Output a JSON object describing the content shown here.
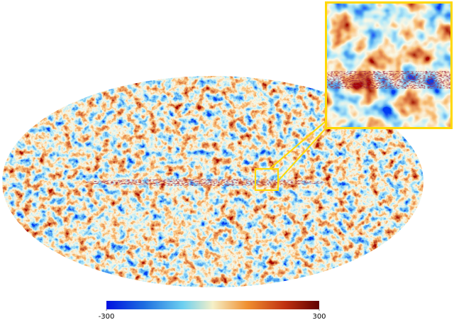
{
  "colorbar": {
    "lim": [
      -300,
      300
    ],
    "ticks": [
      -300,
      300
    ]
  }
}
